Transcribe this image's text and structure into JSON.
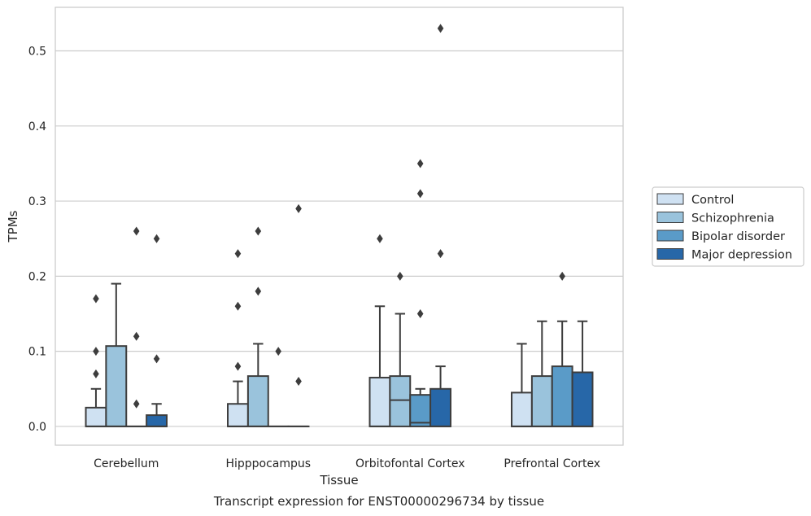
{
  "chart_data": {
    "type": "boxplot",
    "caption": "Transcript expression for ENST00000296734 by tissue",
    "xlabel": "Tissue",
    "ylabel": "TPMs",
    "ylim": [
      -0.025,
      0.558
    ],
    "yticks": [
      0.0,
      0.1,
      0.2,
      0.3,
      0.4,
      0.5
    ],
    "ytick_labels": [
      "0.0",
      "0.1",
      "0.2",
      "0.3",
      "0.4",
      "0.5"
    ],
    "grid": "horizontal",
    "legend_position": "right",
    "categories": [
      "Cerebellum",
      "Hipppocampus",
      "Orbitofontal Cortex",
      "Prefrontal Cortex"
    ],
    "series": [
      {
        "name": "Control",
        "color": "#cfe1f2",
        "boxes": [
          {
            "q1": 0.0,
            "median": 0.0,
            "q3": 0.025,
            "whislo": 0.0,
            "whishi": 0.05,
            "fliers": [
              0.07,
              0.1,
              0.17
            ]
          },
          {
            "q1": 0.0,
            "median": 0.0,
            "q3": 0.03,
            "whislo": 0.0,
            "whishi": 0.06,
            "fliers": [
              0.08,
              0.16,
              0.23
            ]
          },
          {
            "q1": 0.0,
            "median": 0.0,
            "q3": 0.065,
            "whislo": 0.0,
            "whishi": 0.16,
            "fliers": [
              0.25
            ]
          },
          {
            "q1": 0.0,
            "median": 0.0,
            "q3": 0.045,
            "whislo": 0.0,
            "whishi": 0.11,
            "fliers": []
          }
        ]
      },
      {
        "name": "Schizophrenia",
        "color": "#9ac3dc",
        "boxes": [
          {
            "q1": 0.0,
            "median": 0.0,
            "q3": 0.107,
            "whislo": 0.0,
            "whishi": 0.19,
            "fliers": []
          },
          {
            "q1": 0.0,
            "median": 0.0,
            "q3": 0.067,
            "whislo": 0.0,
            "whishi": 0.11,
            "fliers": [
              0.18,
              0.26
            ]
          },
          {
            "q1": 0.0,
            "median": 0.035,
            "q3": 0.067,
            "whislo": 0.0,
            "whishi": 0.15,
            "fliers": [
              0.2
            ]
          },
          {
            "q1": 0.0,
            "median": 0.0,
            "q3": 0.067,
            "whislo": 0.0,
            "whishi": 0.14,
            "fliers": []
          }
        ]
      },
      {
        "name": "Bipolar disorder",
        "color": "#5a9bc8",
        "boxes": [
          {
            "q1": 0.0,
            "median": 0.0,
            "q3": 0.0,
            "whislo": 0.0,
            "whishi": 0.0,
            "fliers": [
              0.03,
              0.12,
              0.26
            ]
          },
          {
            "q1": 0.0,
            "median": 0.0,
            "q3": 0.0,
            "whislo": 0.0,
            "whishi": 0.0,
            "fliers": [
              0.1
            ]
          },
          {
            "q1": 0.0,
            "median": 0.005,
            "q3": 0.042,
            "whislo": 0.0,
            "whishi": 0.05,
            "fliers": [
              0.15,
              0.31,
              0.35
            ]
          },
          {
            "q1": 0.0,
            "median": 0.0,
            "q3": 0.08,
            "whislo": 0.0,
            "whishi": 0.14,
            "fliers": [
              0.2
            ]
          }
        ]
      },
      {
        "name": "Major depression",
        "color": "#2767a8",
        "boxes": [
          {
            "q1": 0.0,
            "median": 0.0,
            "q3": 0.015,
            "whislo": 0.0,
            "whishi": 0.03,
            "fliers": [
              0.09,
              0.25
            ]
          },
          {
            "q1": 0.0,
            "median": 0.0,
            "q3": 0.0,
            "whislo": 0.0,
            "whishi": 0.0,
            "fliers": [
              0.06,
              0.29
            ]
          },
          {
            "q1": 0.0,
            "median": 0.0,
            "q3": 0.05,
            "whislo": 0.0,
            "whishi": 0.08,
            "fliers": [
              0.23,
              0.53
            ]
          },
          {
            "q1": 0.0,
            "median": 0.0,
            "q3": 0.072,
            "whislo": 0.0,
            "whishi": 0.14,
            "fliers": []
          }
        ]
      }
    ]
  }
}
